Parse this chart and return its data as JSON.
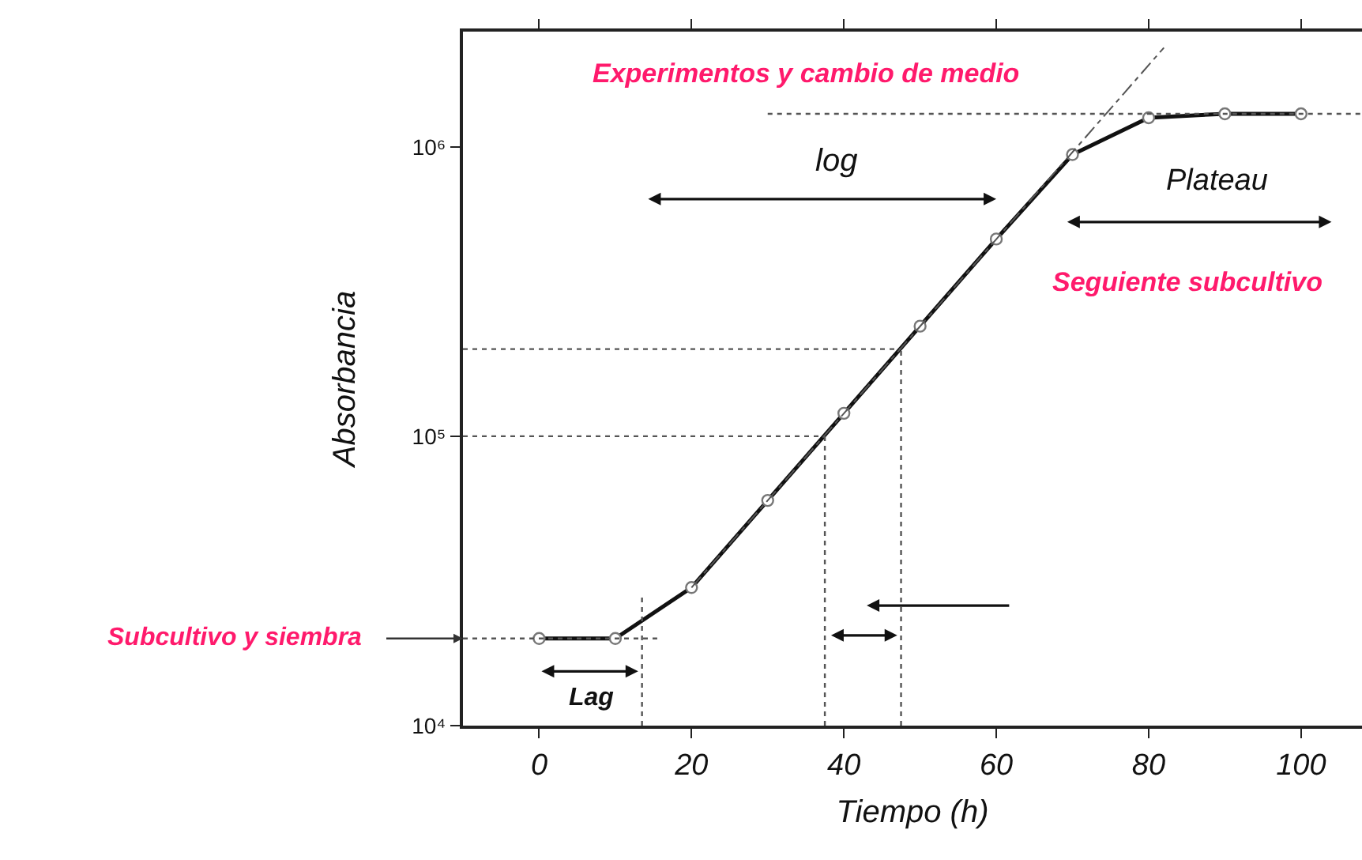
{
  "chart_data": {
    "type": "line",
    "xlabel": "Tiempo (h)",
    "ylabel": "Absorbancia",
    "log": "y",
    "marker": "circle",
    "grid": false,
    "xlim": [
      -10,
      108
    ],
    "xticks": [
      0,
      20,
      40,
      60,
      80,
      100
    ],
    "ylim": [
      10000,
      2500000
    ],
    "yticks": [
      {
        "value": 10000,
        "label": "10⁴"
      },
      {
        "value": 100000,
        "label": "10⁵"
      },
      {
        "value": 1000000,
        "label": "10⁶"
      }
    ],
    "x": [
      0,
      10,
      20,
      30,
      40,
      50,
      60,
      70,
      80,
      90,
      100
    ],
    "series": [
      {
        "color": "#111111",
        "values": [
          20000,
          20000,
          30000,
          60000,
          120000,
          240000,
          480000,
          940000,
          1260000,
          1300000,
          1300000
        ]
      },
      {
        "type": "line",
        "marker": "none",
        "line_style": "dashed",
        "color": "#555555",
        "x": [
          20,
          82
        ],
        "values": [
          30000,
          2200000
        ]
      }
    ],
    "ref_lines": [
      {
        "axis": "y",
        "value": 20000,
        "line_style": "dotted",
        "color": "#555555"
      },
      {
        "axis": "y",
        "value": 100000,
        "line_style": "dotted",
        "color": "#555555"
      },
      {
        "axis": "y",
        "value": 200000,
        "line_style": "dotted",
        "color": "#555555"
      },
      {
        "axis": "y",
        "value": 1300000,
        "line_style": "dotted",
        "color": "#555555"
      },
      {
        "axis": "x",
        "value": 13.5,
        "line_style": "dotted",
        "color": "#555555"
      },
      {
        "axis": "x",
        "value": 37.5,
        "line_style": "dotted",
        "color": "#555555"
      },
      {
        "axis": "x",
        "value": 47.5,
        "line_style": "dotted",
        "color": "#555555"
      }
    ],
    "annotations": [
      "Experimentos y cambio de medio",
      "log",
      "Plateau",
      "Seguiente subcultivo",
      "Lag",
      {
        "text": "Subcultivo y siembra",
        "x": -10,
        "y": 20000
      }
    ]
  }
}
